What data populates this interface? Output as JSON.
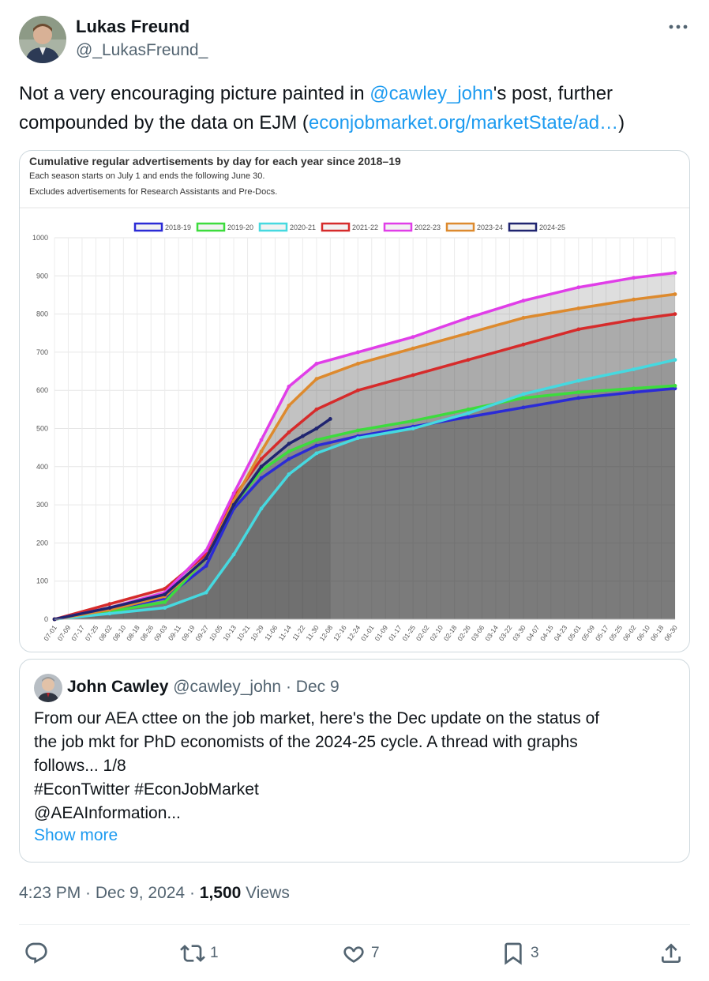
{
  "tweet": {
    "author_name": "Lukas Freund",
    "author_handle": "@_LukasFreund_",
    "text_parts": [
      "Not a very encouraging picture painted in ",
      "@cawley_john",
      "'s post, further compounded by the data on EJM (",
      "econjobmarket.org/marketState/ad…",
      ")"
    ],
    "timestamp": "4:23 PM · Dec 9, 2024 · ",
    "views_count": "1,500",
    "views_label": " Views"
  },
  "quote": {
    "name": "John Cawley",
    "handle": "@cawley_john",
    "separator": " · ",
    "date": "Dec 9",
    "lines": [
      "From our AEA cttee on the job market, here's the Dec update on the status of",
      "the job mkt for PhD economists of the 2024-25 cycle.   A thread with graphs",
      "follows... 1/8",
      "#EconTwitter #EconJobMarket",
      "@AEAInformation..."
    ],
    "show_more": "Show more"
  },
  "actions": {
    "reply_count": "",
    "repost_count": "1",
    "like_count": "7",
    "bookmark_count": "3",
    "share_count": ""
  },
  "icons": {
    "more": "more-icon",
    "reply": "reply-icon",
    "repost": "repost-icon",
    "like": "heart-icon",
    "bookmark": "bookmark-icon",
    "share": "share-icon"
  },
  "chart_data": {
    "type": "area",
    "title": "Cumulative regular advertisements by day for each year since 2018–19",
    "subtitle_lines": [
      "Each season starts on July 1 and ends the following June 30.",
      "Excludes advertisements for Research Assistants and Pre-Docs."
    ],
    "xlabel": "",
    "ylabel": "",
    "ylim": [
      0,
      1000
    ],
    "yticks": [
      0,
      100,
      200,
      300,
      400,
      500,
      600,
      700,
      800,
      900,
      1000
    ],
    "xticks": [
      "07-01",
      "07-09",
      "07-17",
      "07-25",
      "08-02",
      "08-10",
      "08-18",
      "08-26",
      "09-03",
      "09-11",
      "09-19",
      "09-27",
      "10-05",
      "10-13",
      "10-21",
      "10-29",
      "11-06",
      "11-14",
      "11-22",
      "11-30",
      "12-08",
      "12-16",
      "12-24",
      "01-01",
      "01-09",
      "01-17",
      "01-25",
      "02-02",
      "02-10",
      "02-18",
      "02-26",
      "03-06",
      "03-14",
      "03-22",
      "03-30",
      "04-07",
      "04-15",
      "04-23",
      "05-01",
      "05-09",
      "05-17",
      "05-25",
      "06-02",
      "06-10",
      "06-18",
      "06-30"
    ],
    "grid": true,
    "legend_position": "top",
    "series": [
      {
        "name": "2018-19",
        "color": "#2b2bd6",
        "x": [
          "07-01",
          "08-02",
          "09-03",
          "09-27",
          "10-13",
          "10-29",
          "11-14",
          "11-30",
          "12-24",
          "01-25",
          "02-26",
          "03-30",
          "05-01",
          "06-02",
          "06-30"
        ],
        "values": [
          0,
          25,
          55,
          140,
          290,
          370,
          420,
          455,
          480,
          505,
          530,
          555,
          580,
          595,
          605
        ]
      },
      {
        "name": "2019-20",
        "color": "#3ddc3d",
        "x": [
          "07-01",
          "08-02",
          "09-03",
          "09-27",
          "10-13",
          "10-29",
          "11-14",
          "11-30",
          "12-24",
          "01-25",
          "02-26",
          "03-30",
          "05-01",
          "06-02",
          "06-30"
        ],
        "values": [
          0,
          20,
          45,
          160,
          300,
          390,
          440,
          470,
          495,
          520,
          550,
          580,
          595,
          605,
          612
        ]
      },
      {
        "name": "2020-21",
        "color": "#46d9e0",
        "x": [
          "07-01",
          "08-02",
          "09-03",
          "09-27",
          "10-13",
          "10-29",
          "11-14",
          "11-30",
          "12-24",
          "01-25",
          "02-26",
          "03-30",
          "05-01",
          "06-02",
          "06-30"
        ],
        "values": [
          0,
          15,
          30,
          70,
          170,
          290,
          380,
          435,
          475,
          500,
          540,
          590,
          625,
          655,
          680
        ]
      },
      {
        "name": "2021-22",
        "color": "#d62b2b",
        "x": [
          "07-01",
          "08-02",
          "09-03",
          "09-27",
          "10-13",
          "10-29",
          "11-14",
          "11-30",
          "12-24",
          "01-25",
          "02-26",
          "03-30",
          "05-01",
          "06-02",
          "06-30"
        ],
        "values": [
          0,
          40,
          80,
          170,
          320,
          420,
          490,
          550,
          600,
          640,
          680,
          720,
          760,
          785,
          800
        ]
      },
      {
        "name": "2022-23",
        "color": "#e03ee8",
        "x": [
          "07-01",
          "08-02",
          "09-03",
          "09-27",
          "10-13",
          "10-29",
          "11-14",
          "11-30",
          "12-24",
          "01-25",
          "02-26",
          "03-30",
          "05-01",
          "06-02",
          "06-30"
        ],
        "values": [
          0,
          30,
          70,
          180,
          330,
          470,
          610,
          670,
          700,
          740,
          790,
          835,
          870,
          895,
          908
        ]
      },
      {
        "name": "2023-24",
        "color": "#dd8a2e",
        "x": [
          "07-01",
          "08-02",
          "09-03",
          "09-27",
          "10-13",
          "10-29",
          "11-14",
          "11-30",
          "12-24",
          "01-25",
          "02-26",
          "03-30",
          "05-01",
          "06-02",
          "06-30"
        ],
        "values": [
          0,
          25,
          60,
          160,
          310,
          440,
          560,
          630,
          670,
          710,
          750,
          790,
          815,
          838,
          852
        ]
      },
      {
        "name": "2024-25",
        "color": "#1f2470",
        "x": [
          "07-01",
          "08-02",
          "09-03",
          "09-27",
          "10-13",
          "10-29",
          "11-14",
          "11-22",
          "11-30",
          "12-08"
        ],
        "values": [
          0,
          30,
          65,
          160,
          300,
          400,
          460,
          480,
          500,
          525
        ]
      }
    ]
  }
}
